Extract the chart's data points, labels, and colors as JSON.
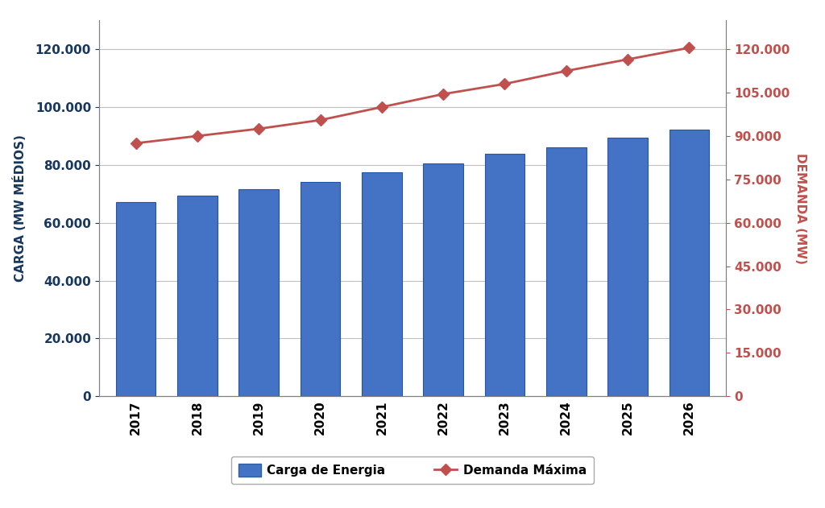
{
  "years": [
    2017,
    2018,
    2019,
    2020,
    2021,
    2022,
    2023,
    2024,
    2025,
    2026
  ],
  "carga_energia": [
    67200,
    69500,
    71500,
    74000,
    77500,
    80500,
    83800,
    86200,
    89300,
    92300
  ],
  "demanda_maxima": [
    87500,
    90000,
    92500,
    95500,
    100000,
    104500,
    108000,
    112500,
    116500,
    120500
  ],
  "bar_color": "#4472C4",
  "bar_edge_color": "#2255AA",
  "line_color": "#C0504D",
  "marker_color": "#C0504D",
  "left_ylabel": "CARGA (MW MÉDIOS)",
  "right_ylabel": "DEMANDA (MW)",
  "left_ylabel_color": "#17375E",
  "right_ylabel_color": "#C0504D",
  "legend_bar_label": "Carga de Energia",
  "legend_line_label": "Demanda Máxima",
  "left_ylim": [
    0,
    130000
  ],
  "right_ylim": [
    0,
    130000
  ],
  "left_yticks": [
    0,
    20000,
    40000,
    60000,
    80000,
    100000,
    120000
  ],
  "right_yticks": [
    0,
    15000,
    30000,
    45000,
    60000,
    75000,
    90000,
    105000,
    120000
  ],
  "background_color": "#FFFFFF",
  "plot_bg_color": "#FFFFFF",
  "grid_color": "#C0C0C0",
  "tick_label_fontsize": 11,
  "axis_label_fontsize": 11,
  "legend_fontsize": 11,
  "bar_width": 0.65
}
